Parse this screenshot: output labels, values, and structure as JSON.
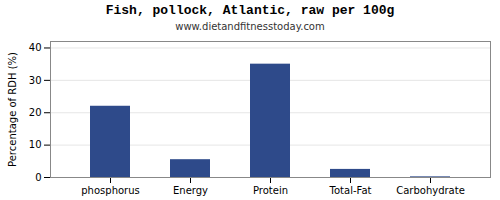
{
  "chart_data": {
    "type": "bar",
    "title": "Fish, pollock, Atlantic, raw per 100g",
    "subtitle": "www.dietandfitnesstoday.com",
    "categories": [
      "phosphorus",
      "Energy",
      "Protein",
      "Total-Fat",
      "Carbohydrate"
    ],
    "values": [
      22,
      5.5,
      35,
      2.5,
      0.2
    ],
    "color": "#2e4a8a",
    "ylabel": "Percentage of RDH (%)",
    "ylim": [
      0,
      42
    ],
    "yticks": [
      0,
      10,
      20,
      30,
      40
    ],
    "grid": true
  }
}
